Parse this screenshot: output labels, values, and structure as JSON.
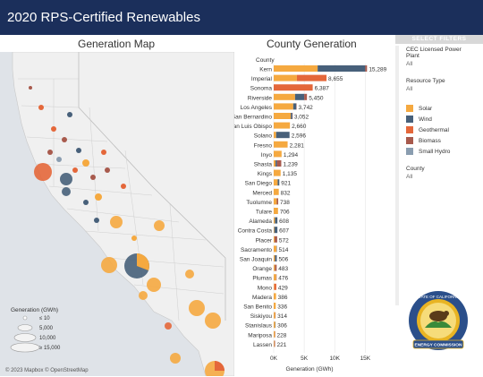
{
  "header": {
    "title": "2020 RPS-Certified Renewables"
  },
  "map": {
    "title": "Generation Map",
    "size_legend": {
      "title": "Generation (GWh)",
      "labels": [
        "≤ 10",
        "5,000",
        "10,000",
        "≥ 15,000"
      ]
    },
    "copyright": "© 2023 Mapbox © OpenStreetMap"
  },
  "chart": {
    "title": "County Generation",
    "county_header": "County",
    "xlabel": "Generation (GWh)"
  },
  "chart_data": {
    "type": "bar",
    "orientation": "horizontal",
    "stacked": true,
    "title": "County Generation",
    "xlabel": "Generation (GWh)",
    "ylabel": "County",
    "xlim": [
      0,
      17000
    ],
    "xticks": [
      "0K",
      "5K",
      "10K",
      "15K"
    ],
    "xtick_values": [
      0,
      5000,
      10000,
      15000
    ],
    "categories": [
      "Kern",
      "Imperial",
      "Sonoma",
      "Riverside",
      "Los Angeles",
      "San Bernardino",
      "San Luis Obispo",
      "Solano",
      "Fresno",
      "Inyo",
      "Shasta",
      "Kings",
      "San Diego",
      "Merced",
      "Tuolumne",
      "Tulare",
      "Alameda",
      "Contra Costa",
      "Placer",
      "Sacramento",
      "San Joaquin",
      "Orange",
      "Plumas",
      "Mono",
      "Madera",
      "San Benito",
      "Siskiyou",
      "Stanislaus",
      "Mariposa",
      "Lassen"
    ],
    "totals": [
      15289,
      8655,
      6387,
      5450,
      3742,
      3052,
      2660,
      2596,
      2281,
      1294,
      1239,
      1135,
      921,
      832,
      738,
      706,
      608,
      607,
      572,
      514,
      506,
      483,
      476,
      429,
      386,
      336,
      314,
      306,
      228,
      221
    ],
    "total_labels": [
      "15,289",
      "8,655",
      "6,387",
      "5,450",
      "3,742",
      "3,052",
      "2,660",
      "2,596",
      "2,281",
      "1,294",
      "1,239",
      "1,135",
      "921",
      "832",
      "738",
      "706",
      "608",
      "607",
      "572",
      "514",
      "506",
      "483",
      "476",
      "429",
      "386",
      "336",
      "314",
      "306",
      "228",
      "221"
    ],
    "series": [
      {
        "name": "Solar",
        "color": "#f5a940",
        "values": [
          7200,
          3800,
          0,
          3500,
          3200,
          2800,
          2660,
          400,
          2281,
          1294,
          300,
          1135,
          650,
          832,
          500,
          706,
          200,
          100,
          150,
          450,
          200,
          200,
          400,
          100,
          386,
          336,
          250,
          250,
          200,
          100
        ]
      },
      {
        "name": "Wind",
        "color": "#47607a",
        "values": [
          7800,
          0,
          0,
          1500,
          500,
          250,
          0,
          2196,
          0,
          0,
          250,
          0,
          271,
          0,
          0,
          0,
          408,
          507,
          0,
          64,
          306,
          0,
          0,
          0,
          0,
          0,
          0,
          56,
          0,
          0
        ]
      },
      {
        "name": "Geothermal",
        "color": "#e4673a",
        "values": [
          0,
          4855,
          6387,
          0,
          0,
          0,
          0,
          0,
          0,
          0,
          0,
          0,
          0,
          0,
          0,
          0,
          0,
          0,
          0,
          0,
          0,
          0,
          0,
          329,
          0,
          0,
          0,
          0,
          0,
          0
        ]
      },
      {
        "name": "Biomass",
        "color": "#a85a4d",
        "values": [
          289,
          0,
          0,
          450,
          42,
          2,
          0,
          0,
          0,
          0,
          689,
          0,
          0,
          0,
          238,
          0,
          0,
          0,
          422,
          0,
          0,
          283,
          76,
          0,
          0,
          0,
          64,
          0,
          28,
          121
        ]
      },
      {
        "name": "Small Hydro",
        "color": "#8a9db0",
        "values": [
          0,
          0,
          0,
          0,
          0,
          0,
          0,
          0,
          0,
          0,
          0,
          0,
          0,
          0,
          0,
          0,
          0,
          0,
          0,
          0,
          0,
          0,
          0,
          0,
          0,
          0,
          0,
          0,
          0,
          0
        ]
      }
    ]
  },
  "filters": {
    "header": "SELECT FILTERS",
    "power_plant": {
      "label": "CEC Licensed Power Plant",
      "value": "All"
    },
    "resource_type": {
      "label": "Resource Type",
      "value": "All"
    },
    "county": {
      "label": "County",
      "value": "All"
    },
    "legend": [
      {
        "label": "Solar",
        "color": "#f5a940"
      },
      {
        "label": "Wind",
        "color": "#47607a"
      },
      {
        "label": "Geothermal",
        "color": "#e4673a"
      },
      {
        "label": "Biomass",
        "color": "#a85a4d"
      },
      {
        "label": "Small Hydro",
        "color": "#8a9db0"
      }
    ]
  },
  "seal": {
    "top_text": "STATE OF CALIFORNIA",
    "bottom_text": "ENERGY COMMISSION",
    "colors": {
      "ring": "#2b4f8a",
      "gold": "#e8b423",
      "green": "#3a8a3a"
    }
  }
}
